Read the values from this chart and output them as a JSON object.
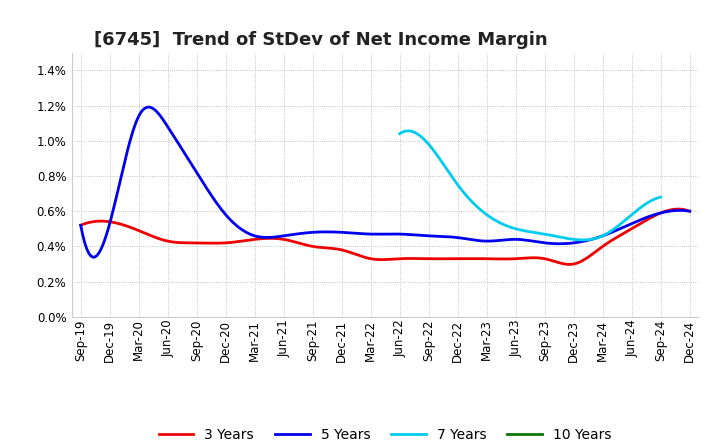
{
  "title": "[6745]  Trend of StDev of Net Income Margin",
  "x_labels": [
    "Sep-19",
    "Dec-19",
    "Mar-20",
    "Jun-20",
    "Sep-20",
    "Dec-20",
    "Mar-21",
    "Jun-21",
    "Sep-21",
    "Dec-21",
    "Mar-22",
    "Jun-22",
    "Sep-22",
    "Dec-22",
    "Mar-23",
    "Jun-23",
    "Sep-23",
    "Dec-23",
    "Mar-24",
    "Jun-24",
    "Sep-24",
    "Dec-24"
  ],
  "y_min": 0.0,
  "y_max": 0.015,
  "y_ticks": [
    0.0,
    0.002,
    0.004,
    0.006,
    0.008,
    0.01,
    0.012,
    0.014
  ],
  "line_3y": {
    "label": "3 Years",
    "color": "#EE0000",
    "values": [
      0.0052,
      0.0054,
      0.0049,
      0.0043,
      0.0042,
      0.0042,
      0.0044,
      0.0044,
      0.004,
      0.0038,
      0.0033,
      0.0033,
      0.0033,
      0.0033,
      0.0033,
      0.0033,
      0.0033,
      0.003,
      0.004,
      0.005,
      0.0059,
      0.006
    ]
  },
  "line_5y": {
    "label": "5 Years",
    "color": "#0000EE",
    "values": [
      0.0052,
      0.0053,
      0.0114,
      0.0108,
      0.0082,
      0.0058,
      0.0046,
      0.0046,
      0.0048,
      0.0048,
      0.0047,
      0.0047,
      0.0046,
      0.0045,
      0.0043,
      0.0044,
      0.0042,
      0.0042,
      0.0046,
      0.0053,
      0.0059,
      0.006
    ]
  },
  "line_7y": {
    "label": "7 Years",
    "color": "#00CCEE",
    "values": [
      null,
      null,
      null,
      null,
      null,
      null,
      null,
      null,
      null,
      null,
      null,
      0.0104,
      0.0098,
      0.0075,
      0.0058,
      0.005,
      0.0047,
      0.0044,
      0.0046,
      0.0058,
      0.0068,
      null
    ]
  },
  "line_10y": {
    "label": "10 Years",
    "color": "#007700",
    "values": [
      null,
      null,
      null,
      null,
      null,
      null,
      null,
      null,
      null,
      null,
      null,
      null,
      null,
      null,
      null,
      null,
      null,
      null,
      null,
      null,
      null,
      null
    ]
  },
  "background_color": "#FFFFFF",
  "plot_bg_color": "#FFFFFF",
  "grid_color": "#AAAAAA",
  "title_fontsize": 13,
  "legend_fontsize": 10,
  "tick_fontsize": 8.5
}
